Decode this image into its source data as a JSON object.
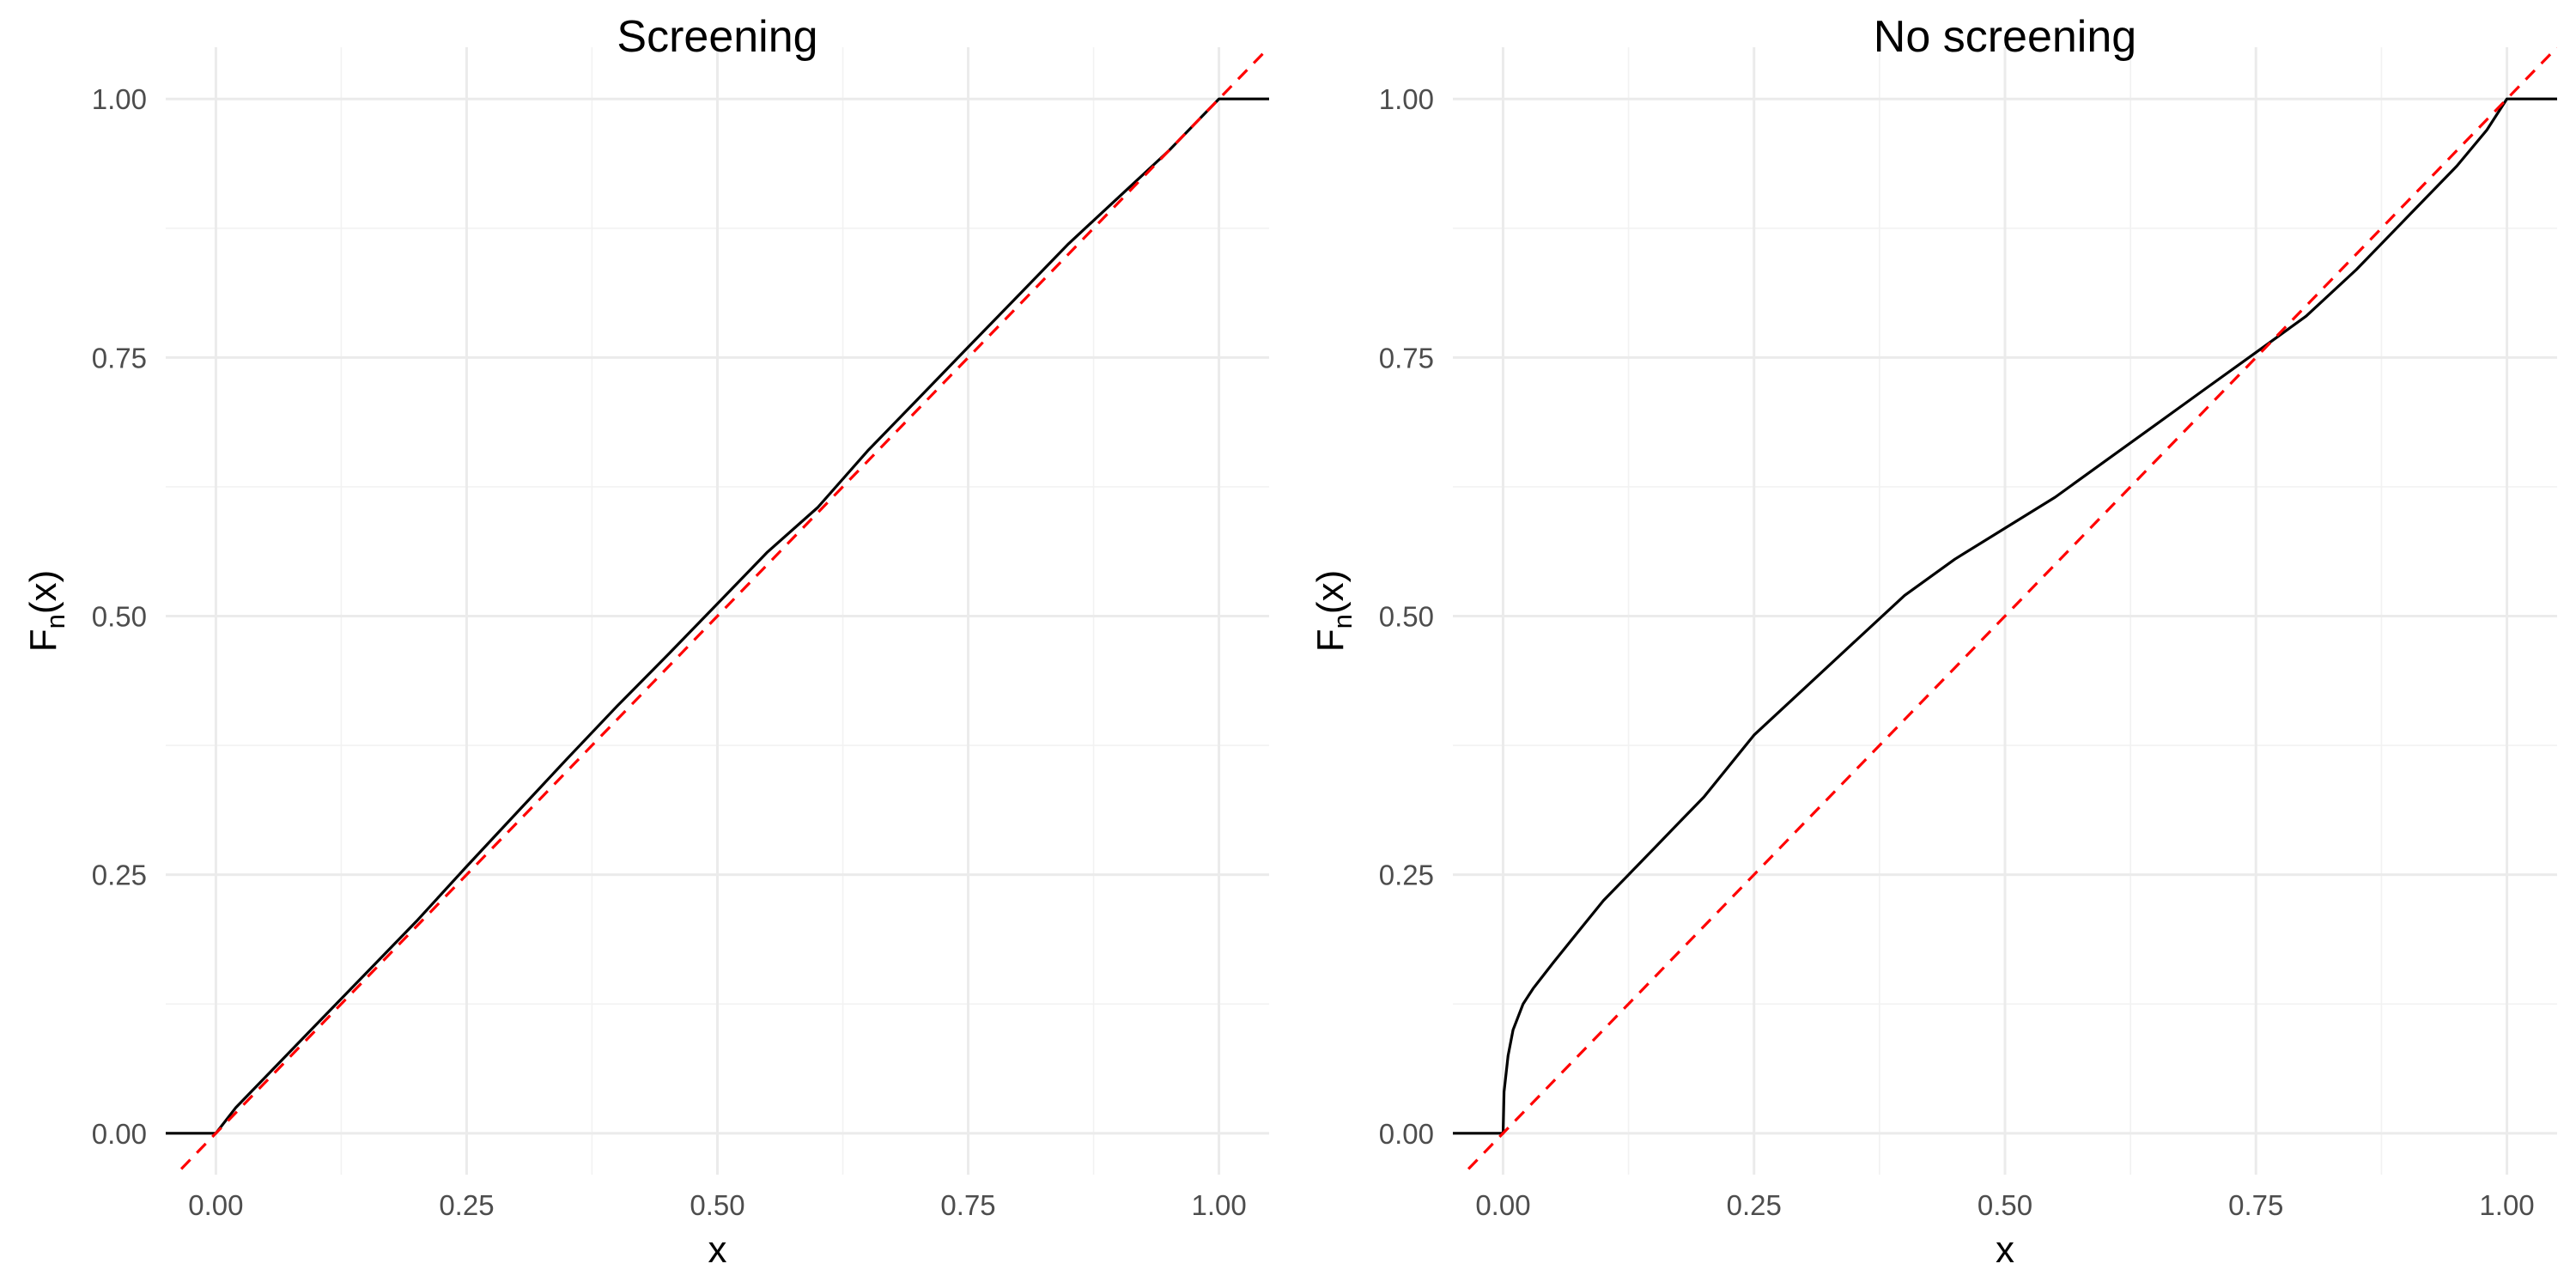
{
  "chart_data": [
    {
      "type": "line",
      "title": "Screening",
      "xlabel": "x",
      "ylabel_main": "F",
      "ylabel_sub": "n",
      "ylabel_tail": "(x)",
      "xlim": [
        -0.05,
        1.05
      ],
      "ylim": [
        -0.04,
        1.05
      ],
      "x_ticks": [
        0,
        0.25,
        0.5,
        0.75,
        1
      ],
      "x_tick_labels": [
        "0.00",
        "0.25",
        "0.50",
        "0.75",
        "1.00"
      ],
      "y_ticks": [
        0,
        0.25,
        0.5,
        0.75,
        1
      ],
      "y_tick_labels": [
        "0.00",
        "0.25",
        "0.50",
        "0.75",
        "1.00"
      ],
      "grid": true,
      "legend": "none",
      "series": [
        {
          "kind": "ecdf",
          "color": "#000000",
          "style": "solid",
          "x": [
            -0.05,
            0,
            0.02,
            0.05,
            0.1,
            0.15,
            0.2,
            0.25,
            0.3,
            0.35,
            0.4,
            0.45,
            0.5,
            0.55,
            0.6,
            0.65,
            0.7,
            0.75,
            0.8,
            0.85,
            0.9,
            0.95,
            0.98,
            1,
            1.05
          ],
          "y": [
            0,
            0,
            0.025,
            0.055,
            0.105,
            0.155,
            0.205,
            0.258,
            0.31,
            0.362,
            0.413,
            0.462,
            0.512,
            0.562,
            0.605,
            0.66,
            0.71,
            0.76,
            0.81,
            0.86,
            0.905,
            0.95,
            0.98,
            1,
            1
          ]
        },
        {
          "kind": "reference",
          "color": "#ff0000",
          "style": "dashed",
          "x": [
            -0.05,
            1.05
          ],
          "y": [
            -0.05,
            1.05
          ]
        }
      ]
    },
    {
      "type": "line",
      "title": "No screening",
      "xlabel": "x",
      "ylabel_main": "F",
      "ylabel_sub": "n",
      "ylabel_tail": "(x)",
      "xlim": [
        -0.05,
        1.05
      ],
      "ylim": [
        -0.04,
        1.05
      ],
      "x_ticks": [
        0,
        0.25,
        0.5,
        0.75,
        1
      ],
      "x_tick_labels": [
        "0.00",
        "0.25",
        "0.50",
        "0.75",
        "1.00"
      ],
      "y_ticks": [
        0,
        0.25,
        0.5,
        0.75,
        1
      ],
      "y_tick_labels": [
        "0.00",
        "0.25",
        "0.50",
        "0.75",
        "1.00"
      ],
      "grid": true,
      "legend": "none",
      "series": [
        {
          "kind": "ecdf",
          "color": "#000000",
          "style": "solid",
          "x": [
            -0.05,
            0,
            0.001,
            0.005,
            0.01,
            0.02,
            0.03,
            0.05,
            0.075,
            0.1,
            0.125,
            0.15,
            0.175,
            0.2,
            0.25,
            0.3,
            0.35,
            0.4,
            0.45,
            0.5,
            0.55,
            0.6,
            0.65,
            0.7,
            0.75,
            0.8,
            0.85,
            0.9,
            0.95,
            0.98,
            1,
            1.05
          ],
          "y": [
            0,
            0,
            0.04,
            0.075,
            0.1,
            0.125,
            0.14,
            0.165,
            0.195,
            0.225,
            0.25,
            0.275,
            0.3,
            0.325,
            0.385,
            0.43,
            0.475,
            0.52,
            0.555,
            0.585,
            0.615,
            0.65,
            0.685,
            0.72,
            0.755,
            0.79,
            0.835,
            0.885,
            0.935,
            0.97,
            1,
            1
          ]
        },
        {
          "kind": "reference",
          "color": "#ff0000",
          "style": "dashed",
          "x": [
            -0.05,
            1.05
          ],
          "y": [
            -0.05,
            1.05
          ]
        }
      ]
    }
  ]
}
